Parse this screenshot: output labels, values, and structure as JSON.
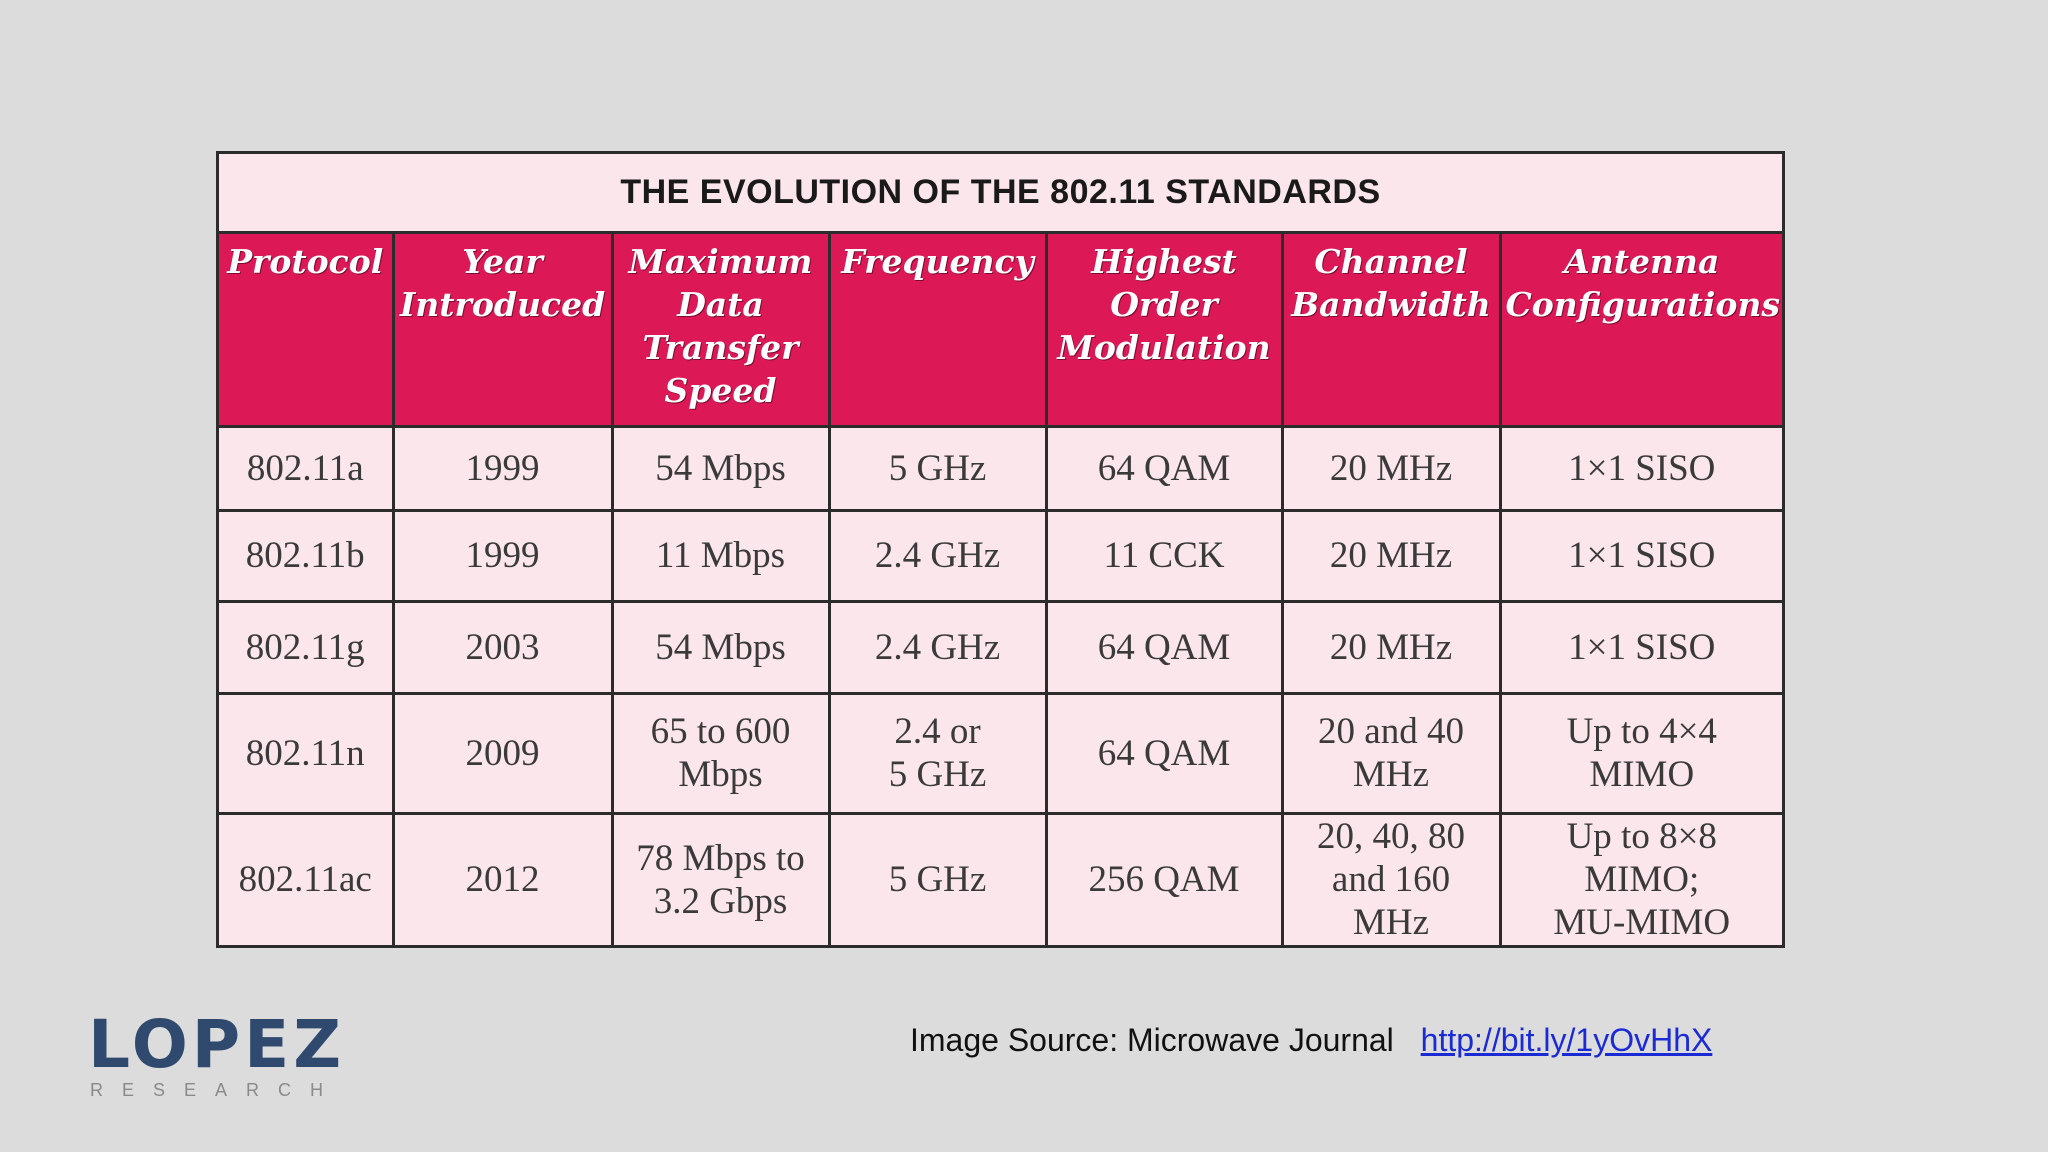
{
  "table": {
    "title": "THE EVOLUTION OF THE 802.11 STANDARDS",
    "headers": [
      "Protocol",
      "Year\nIntroduced",
      "Maximum\nData\nTransfer\nSpeed",
      "Frequency",
      "Highest\nOrder\nModulation",
      "Channel\nBandwidth",
      "Antenna\nConfigurations"
    ],
    "rows": [
      [
        "802.11a",
        "1999",
        "54 Mbps",
        "5 GHz",
        "64 QAM",
        "20 MHz",
        "1×1 SISO"
      ],
      [
        "802.11b",
        "1999",
        "11 Mbps",
        "2.4 GHz",
        "11 CCK",
        "20 MHz",
        "1×1 SISO"
      ],
      [
        "802.11g",
        "2003",
        "54 Mbps",
        "2.4 GHz",
        "64 QAM",
        "20 MHz",
        "1×1 SISO"
      ],
      [
        "802.11n",
        "2009",
        "65 to 600\nMbps",
        "2.4 or\n5 GHz",
        "64 QAM",
        "20 and 40\nMHz",
        "Up to 4×4\nMIMO"
      ],
      [
        "802.11ac",
        "2012",
        "78 Mbps to\n3.2 Gbps",
        "5 GHz",
        "256 QAM",
        "20, 40, 80\nand 160\nMHz",
        "Up to 8×8\nMIMO;\nMU-MIMO"
      ]
    ]
  },
  "source": {
    "label": "Image Source: Microwave Journal",
    "link_text": "http://bit.ly/1yOvHhX"
  },
  "logo": {
    "word": "LOPEZ",
    "sub": "RESEARCH"
  },
  "colors": {
    "header_bg": "#dc1857",
    "cell_bg": "#fbe6ec",
    "slide_bg": "#dcdcdc",
    "logo": "#2f4a6e",
    "link": "#1a2bd6"
  }
}
